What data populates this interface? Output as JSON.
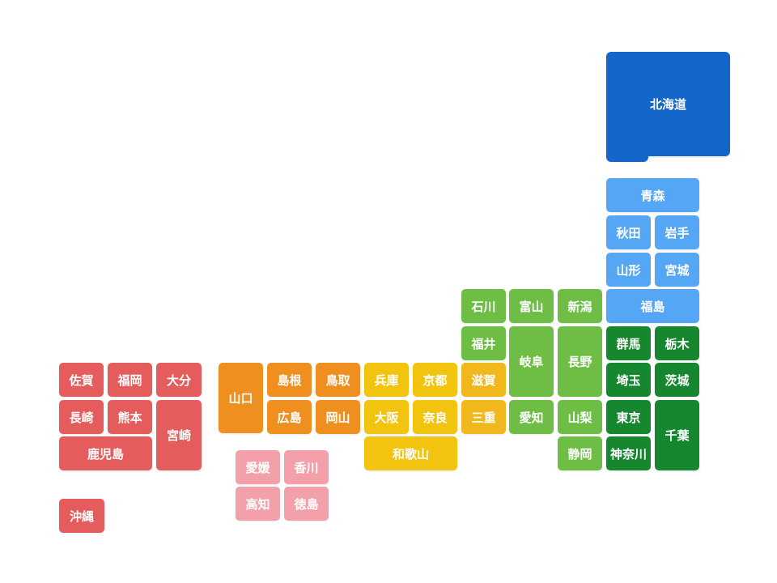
{
  "colors": {
    "hokkaido": "#1467c9",
    "tohoku": "#55a6f5",
    "kanto": "#16862f",
    "chubu": "#6ebd45",
    "kinki": "#f2c410",
    "shiga_mie": "#f0b81c",
    "chugoku": "#ef8f1f",
    "shikoku": "#f4a0ab",
    "kyushu": "#e55c5c"
  },
  "regions": {
    "hokkaido": {
      "prefectures": [
        "北海道"
      ]
    },
    "tohoku": {
      "prefectures": [
        "青森",
        "秋田",
        "岩手",
        "山形",
        "宮城",
        "福島"
      ]
    },
    "kanto": {
      "prefectures": [
        "群馬",
        "栃木",
        "埼玉",
        "茨城",
        "東京",
        "千葉",
        "神奈川"
      ]
    },
    "chubu": {
      "prefectures": [
        "石川",
        "富山",
        "新潟",
        "福井",
        "岐阜",
        "長野",
        "愛知",
        "山梨",
        "静岡"
      ]
    },
    "kinki": {
      "prefectures": [
        "兵庫",
        "京都",
        "滋賀",
        "大阪",
        "奈良",
        "三重",
        "和歌山"
      ]
    },
    "chugoku": {
      "prefectures": [
        "山口",
        "島根",
        "鳥取",
        "広島",
        "岡山"
      ]
    },
    "shikoku": {
      "prefectures": [
        "愛媛",
        "香川",
        "高知",
        "徳島"
      ]
    },
    "kyushu": {
      "prefectures": [
        "佐賀",
        "福岡",
        "大分",
        "長崎",
        "熊本",
        "宮崎",
        "鹿児島",
        "沖縄"
      ]
    }
  }
}
